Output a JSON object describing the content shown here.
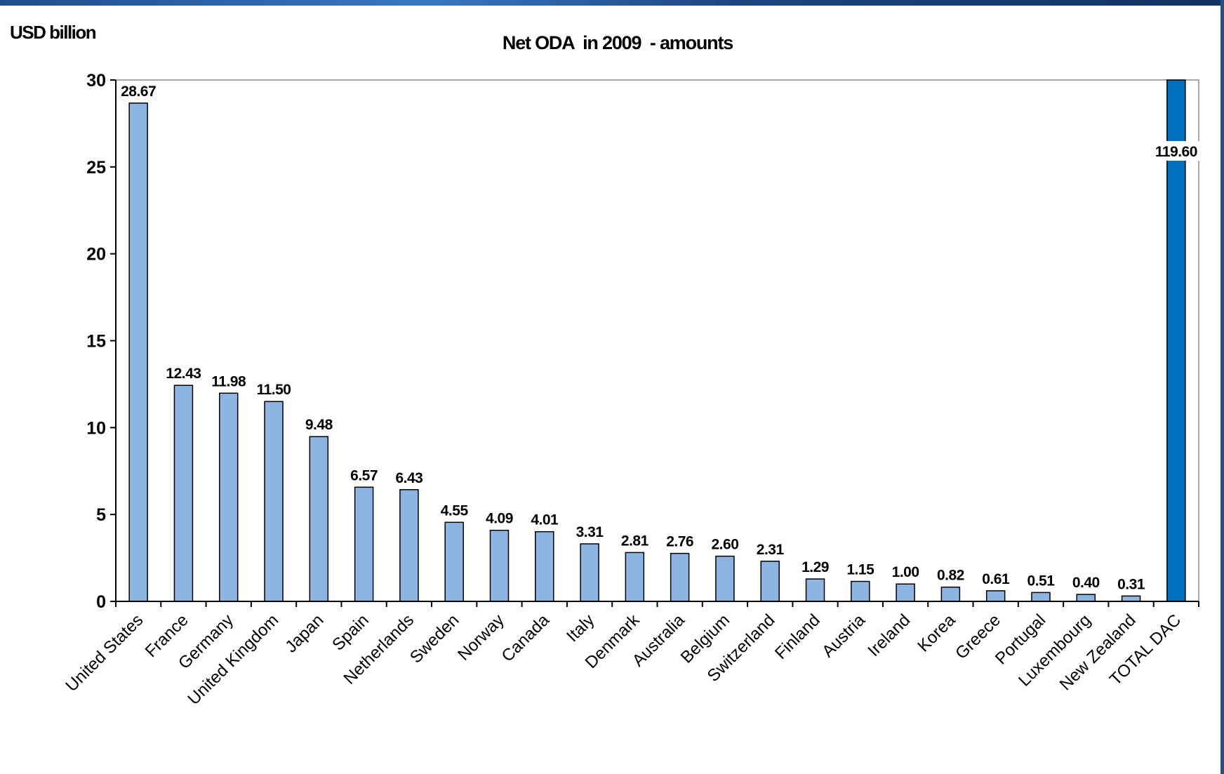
{
  "chart_data": {
    "type": "bar",
    "title": "Net ODA  in 2009  - amounts",
    "ylabel": "USD billion",
    "xlabel": "",
    "ylim": [
      0,
      30
    ],
    "yticks": [
      "0",
      "5",
      "10",
      "15",
      "20",
      "25",
      "30"
    ],
    "grid": false,
    "categories": [
      "United States",
      "France",
      "Germany",
      "United Kingdom",
      "Japan",
      "Spain",
      "Netherlands",
      "Sweden",
      "Norway",
      "Canada",
      "Italy",
      "Denmark",
      "Australia",
      "Belgium",
      "Switzerland",
      "Finland",
      "Austria",
      "Ireland",
      "Korea",
      "Greece",
      "Portugal",
      "Luxembourg",
      "New Zealand",
      "TOTAL DAC"
    ],
    "values": [
      28.67,
      12.43,
      11.98,
      11.5,
      9.48,
      6.57,
      6.43,
      4.55,
      4.09,
      4.01,
      3.31,
      2.81,
      2.76,
      2.6,
      2.31,
      1.29,
      1.15,
      1.0,
      0.82,
      0.61,
      0.51,
      0.4,
      0.31,
      119.6
    ],
    "data_labels": [
      "28.67",
      "12.43",
      "11.98",
      "11.50",
      "9.48",
      "6.57",
      "6.43",
      "4.55",
      "4.09",
      "4.01",
      "3.31",
      "2.81",
      "2.76",
      "2.60",
      "2.31",
      "1.29",
      "1.15",
      "1.00",
      "0.82",
      "0.61",
      "0.51",
      "0.40",
      "0.31",
      "119.60"
    ],
    "colors": {
      "bar": "#8db4e2",
      "total_bar": "#0070c0",
      "outline": "#000000"
    }
  }
}
